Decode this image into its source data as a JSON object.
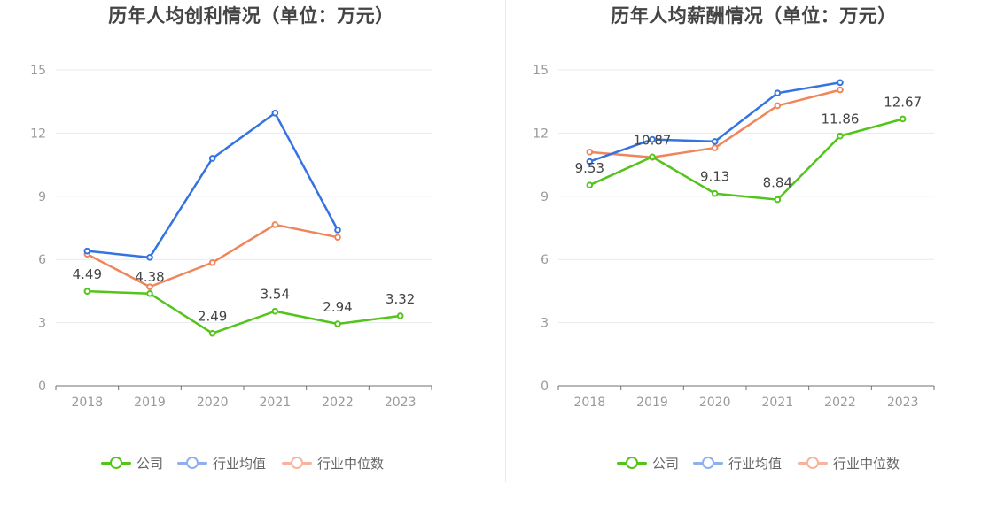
{
  "colors": {
    "company": "#52c41a",
    "industry_avg": "#3574e0",
    "industry_median": "#f0855a",
    "legend_company": "#52c41a",
    "legend_avg": "#8fb0ef",
    "legend_median": "#f7b39c"
  },
  "legend": {
    "company": "公司",
    "industry_avg": "行业均值",
    "industry_median": "行业中位数"
  },
  "chart_data": [
    {
      "type": "line",
      "title": "历年人均创利情况（单位：万元）",
      "categories": [
        "2018",
        "2019",
        "2020",
        "2021",
        "2022",
        "2023"
      ],
      "ylim": [
        0,
        15
      ],
      "yticks": [
        "0",
        "3",
        "6",
        "9",
        "12",
        "15"
      ],
      "grid": true,
      "legend_position": "bottom",
      "series": [
        {
          "name": "公司",
          "key": "company",
          "values": [
            4.49,
            4.38,
            2.49,
            3.54,
            2.94,
            3.32
          ],
          "labels": [
            "4.49",
            "4.38",
            "2.49",
            "3.54",
            "2.94",
            "3.32"
          ]
        },
        {
          "name": "行业均值",
          "key": "industry_avg",
          "values": [
            6.4,
            6.1,
            10.8,
            12.95,
            7.4,
            null
          ]
        },
        {
          "name": "行业中位数",
          "key": "industry_median",
          "values": [
            6.25,
            4.7,
            5.85,
            7.65,
            7.05,
            null
          ]
        }
      ]
    },
    {
      "type": "line",
      "title": "历年人均薪酬情况（单位：万元）",
      "categories": [
        "2018",
        "2019",
        "2020",
        "2021",
        "2022",
        "2023"
      ],
      "ylim": [
        0,
        15
      ],
      "yticks": [
        "0",
        "3",
        "6",
        "9",
        "12",
        "15"
      ],
      "grid": true,
      "legend_position": "bottom",
      "series": [
        {
          "name": "公司",
          "key": "company",
          "values": [
            9.53,
            10.87,
            9.13,
            8.84,
            11.86,
            12.67
          ],
          "labels": [
            "9.53",
            "10.87",
            "9.13",
            "8.84",
            "11.86",
            "12.67"
          ]
        },
        {
          "name": "行业均值",
          "key": "industry_avg",
          "values": [
            10.65,
            11.7,
            11.6,
            13.9,
            14.4,
            null
          ]
        },
        {
          "name": "行业中位数",
          "key": "industry_median",
          "values": [
            11.1,
            10.85,
            11.3,
            13.3,
            14.05,
            null
          ]
        }
      ]
    }
  ]
}
